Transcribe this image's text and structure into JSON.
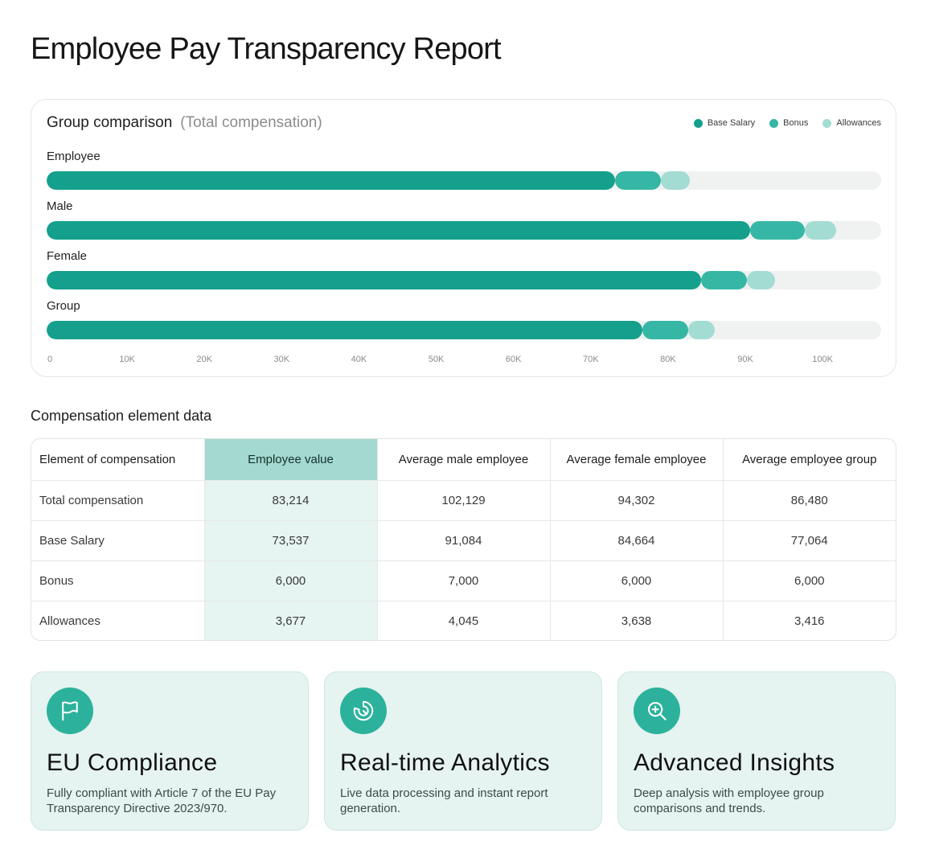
{
  "page_title": "Employee Pay Transparency Report",
  "chart": {
    "title": "Group comparison",
    "subtitle": "(Total compensation)",
    "legend": [
      {
        "label": "Base Salary",
        "color": "#14a08c"
      },
      {
        "label": "Bonus",
        "color": "#36b7a5"
      },
      {
        "label": "Allowances",
        "color": "#a3dcd3"
      }
    ],
    "track_color": "#f0f1f1"
  },
  "chart_data": {
    "type": "bar",
    "orientation": "horizontal",
    "stacked": true,
    "categories": [
      "Employee",
      "Male",
      "Female",
      "Group"
    ],
    "series": [
      {
        "name": "Base Salary",
        "values": [
          73537,
          91084,
          84664,
          77064
        ]
      },
      {
        "name": "Bonus",
        "values": [
          6000,
          7000,
          6000,
          6000
        ]
      },
      {
        "name": "Allowances",
        "values": [
          3677,
          4045,
          3638,
          3416
        ]
      }
    ],
    "xlim": [
      0,
      108000
    ],
    "xticks": [
      "0",
      "10K",
      "20K",
      "30K",
      "40K",
      "50K",
      "60K",
      "70K",
      "80K",
      "90K",
      "100K"
    ],
    "xtick_values": [
      0,
      10000,
      20000,
      30000,
      40000,
      50000,
      60000,
      70000,
      80000,
      90000,
      100000
    ],
    "legend_position": "top-right",
    "grid": false
  },
  "table": {
    "title": "Compensation element data",
    "headers": [
      "Element of compensation",
      "Employee value",
      "Average male employee",
      "Average female employee",
      "Average employee group"
    ],
    "rows": [
      [
        "Total compensation",
        "83,214",
        "102,129",
        "94,302",
        "86,480"
      ],
      [
        "Base Salary",
        "73,537",
        "91,084",
        "84,664",
        "77,064"
      ],
      [
        "Bonus",
        "6,000",
        "7,000",
        "6,000",
        "6,000"
      ],
      [
        "Allowances",
        "3,677",
        "4,045",
        "3,638",
        "3,416"
      ]
    ]
  },
  "features": [
    {
      "icon": "flag-icon",
      "title": "EU Compliance",
      "desc": "Fully compliant with Article 7 of the EU Pay Transparency Directive 2023/970."
    },
    {
      "icon": "pie-chart-icon",
      "title": "Real-time Analytics",
      "desc": "Live data processing and instant report generation."
    },
    {
      "icon": "zoom-in-icon",
      "title": "Advanced Insights",
      "desc": "Deep analysis with employee group comparisons and trends."
    }
  ]
}
